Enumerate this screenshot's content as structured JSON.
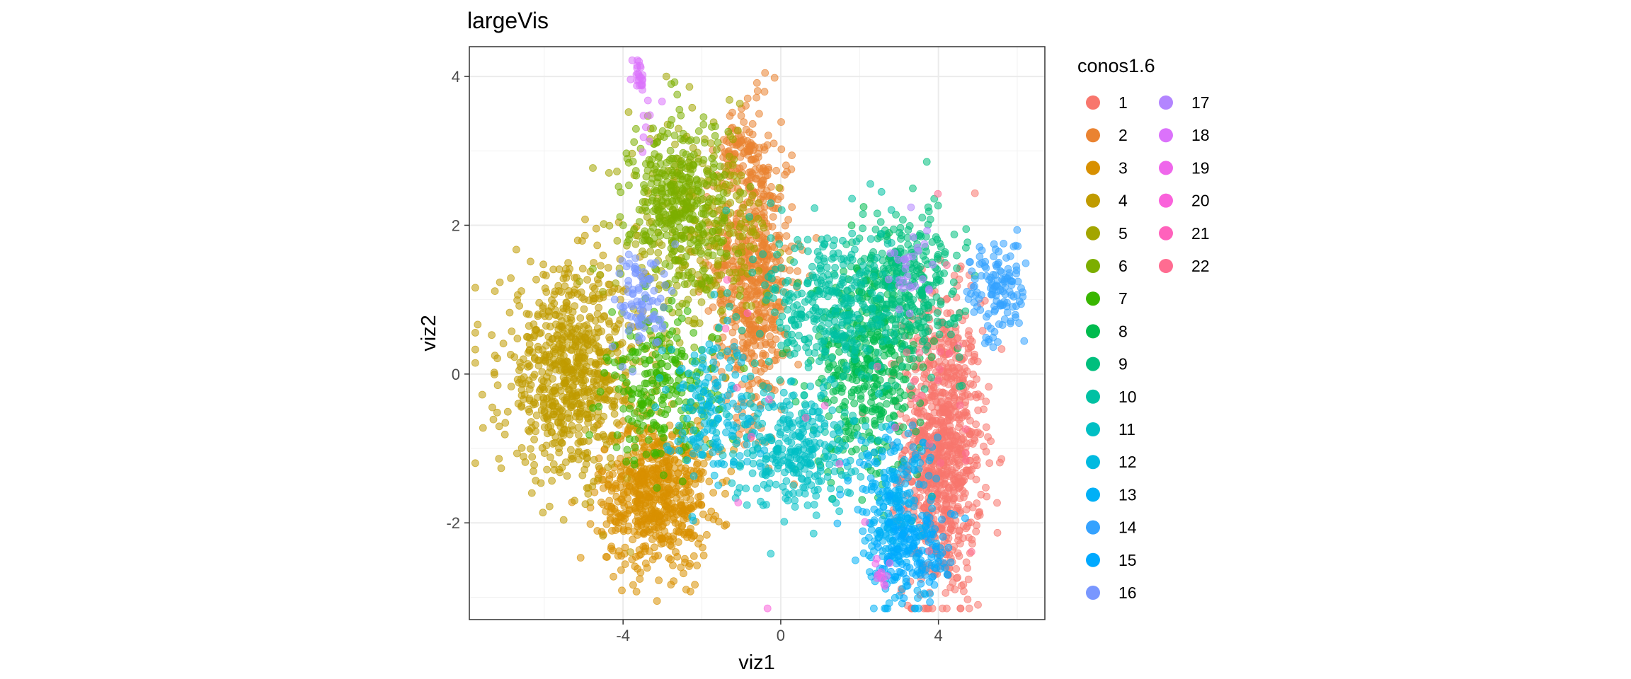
{
  "chart_data": {
    "type": "scatter",
    "title": "largeVis",
    "xlabel": "viz1",
    "ylabel": "viz2",
    "xlim": [
      -7.9,
      6.7
    ],
    "ylim": [
      -3.3,
      4.4
    ],
    "x_ticks": [
      -4,
      0,
      4
    ],
    "x_tick_labels": [
      "-4",
      "0",
      "4"
    ],
    "y_ticks": [
      -2,
      0,
      2,
      4
    ],
    "y_tick_labels": [
      "-2",
      "0",
      "2",
      "4"
    ],
    "grid": true,
    "legend": {
      "title": "conos1.6",
      "placement": "right",
      "columns": 2
    },
    "point_opacity": 0.55,
    "series": [
      {
        "name": "1",
        "color": "#F8766D",
        "clusters": [
          {
            "cx": 4.1,
            "cy": -1.0,
            "sx": 0.5,
            "sy": 1.0,
            "n": 900
          }
        ]
      },
      {
        "name": "2",
        "color": "#EA8331",
        "clusters": [
          {
            "cx": -0.7,
            "cy": 1.4,
            "sx": 0.5,
            "sy": 1.0,
            "n": 650
          },
          {
            "cx": -1.0,
            "cy": 3.0,
            "sx": 0.3,
            "sy": 0.2,
            "n": 60
          }
        ]
      },
      {
        "name": "3",
        "color": "#D89000",
        "clusters": [
          {
            "cx": -3.2,
            "cy": -1.6,
            "sx": 0.7,
            "sy": 0.5,
            "n": 650
          }
        ]
      },
      {
        "name": "4",
        "color": "#C09B00",
        "clusters": [
          {
            "cx": -5.3,
            "cy": 0.0,
            "sx": 0.9,
            "sy": 0.7,
            "n": 750
          }
        ]
      },
      {
        "name": "5",
        "color": "#A3A500",
        "clusters": [
          {
            "cx": -2.1,
            "cy": 1.9,
            "sx": 0.9,
            "sy": 0.7,
            "n": 300
          }
        ]
      },
      {
        "name": "6",
        "color": "#7CAE00",
        "clusters": [
          {
            "cx": -2.6,
            "cy": 2.3,
            "sx": 0.6,
            "sy": 0.6,
            "n": 380
          }
        ]
      },
      {
        "name": "7",
        "color": "#39B600",
        "clusters": [
          {
            "cx": -3.0,
            "cy": -0.2,
            "sx": 0.7,
            "sy": 0.5,
            "n": 240
          }
        ]
      },
      {
        "name": "8",
        "color": "#00BB4E",
        "clusters": [
          {
            "cx": 2.2,
            "cy": 0.1,
            "sx": 0.7,
            "sy": 0.7,
            "n": 420
          }
        ]
      },
      {
        "name": "9",
        "color": "#00BF7D",
        "clusters": [
          {
            "cx": 3.2,
            "cy": 1.2,
            "sx": 0.7,
            "sy": 0.5,
            "n": 320
          }
        ]
      },
      {
        "name": "10",
        "color": "#00C1A3",
        "clusters": [
          {
            "cx": 1.2,
            "cy": 0.9,
            "sx": 0.8,
            "sy": 0.6,
            "n": 320
          }
        ]
      },
      {
        "name": "11",
        "color": "#00BFC4",
        "clusters": [
          {
            "cx": 0.3,
            "cy": -1.0,
            "sx": 0.8,
            "sy": 0.4,
            "n": 300
          }
        ]
      },
      {
        "name": "12",
        "color": "#00BAE0",
        "clusters": [
          {
            "cx": -1.8,
            "cy": -0.4,
            "sx": 0.6,
            "sy": 0.5,
            "n": 160
          }
        ]
      },
      {
        "name": "13",
        "color": "#00B0F6",
        "clusters": [
          {
            "cx": 2.9,
            "cy": -1.9,
            "sx": 0.5,
            "sy": 0.6,
            "n": 280
          }
        ]
      },
      {
        "name": "14",
        "color": "#35A2FF",
        "clusters": [
          {
            "cx": 5.5,
            "cy": 1.1,
            "sx": 0.35,
            "sy": 0.35,
            "n": 130
          }
        ]
      },
      {
        "name": "15",
        "color": "#00A9FF",
        "clusters": [
          {
            "cx": 3.5,
            "cy": -2.4,
            "sx": 0.5,
            "sy": 0.3,
            "n": 120
          }
        ]
      },
      {
        "name": "16",
        "color": "#7997FF",
        "clusters": [
          {
            "cx": -3.5,
            "cy": 1.0,
            "sx": 0.35,
            "sy": 0.35,
            "n": 90
          }
        ]
      },
      {
        "name": "17",
        "color": "#B385FF",
        "clusters": [
          {
            "cx": 3.3,
            "cy": 1.4,
            "sx": 0.3,
            "sy": 0.3,
            "n": 30
          }
        ]
      },
      {
        "name": "18",
        "color": "#DB72FB",
        "clusters": [
          {
            "cx": -3.6,
            "cy": 4.0,
            "sx": 0.07,
            "sy": 0.12,
            "n": 24
          },
          {
            "cx": -3.4,
            "cy": 3.4,
            "sx": 0.15,
            "sy": 0.25,
            "n": 8
          }
        ]
      },
      {
        "name": "19",
        "color": "#EF67EB",
        "clusters": [
          {
            "cx": 2.6,
            "cy": -2.75,
            "sx": 0.1,
            "sy": 0.12,
            "n": 12
          }
        ]
      },
      {
        "name": "20",
        "color": "#FA62DB",
        "clusters": [
          {
            "cx": 1.0,
            "cy": -0.7,
            "sx": 1.5,
            "sy": 1.0,
            "n": 8
          }
        ]
      },
      {
        "name": "21",
        "color": "#FF62BC",
        "clusters": [
          {
            "cx": 0.0,
            "cy": 0.3,
            "sx": 2.0,
            "sy": 1.0,
            "n": 6
          }
        ]
      },
      {
        "name": "22",
        "color": "#FF6C91",
        "clusters": [
          {
            "cx": 4.2,
            "cy": -0.6,
            "sx": 0.5,
            "sy": 0.8,
            "n": 20
          }
        ]
      }
    ]
  }
}
